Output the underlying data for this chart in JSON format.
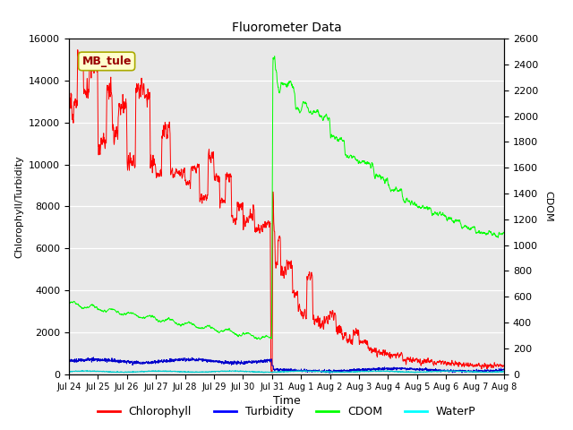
{
  "title": "Fluorometer Data",
  "xlabel": "Time",
  "ylabel_left": "Chlorophyll/Turbidity",
  "ylabel_right": "CDOM",
  "ylim_left": [
    0,
    16000
  ],
  "ylim_right": [
    0,
    2600
  ],
  "yticks_left": [
    0,
    2000,
    4000,
    6000,
    8000,
    10000,
    12000,
    14000,
    16000
  ],
  "yticks_right": [
    0,
    200,
    400,
    600,
    800,
    1000,
    1200,
    1400,
    1600,
    1800,
    2000,
    2200,
    2400,
    2600
  ],
  "xtick_labels": [
    "Jul 24",
    "Jul 25",
    "Jul 26",
    "Jul 27",
    "Jul 28",
    "Jul 29",
    "Jul 30",
    "Jul 31",
    "Aug 1",
    "Aug 2",
    "Aug 3",
    "Aug 4",
    "Aug 5",
    "Aug 6",
    "Aug 7",
    "Aug 8"
  ],
  "fig_facecolor": "#ffffff",
  "plot_bg_color": "#e8e8e8",
  "annotation_box": {
    "text": "MB_tule",
    "facecolor": "#ffffcc",
    "edgecolor": "#aaaa00",
    "textcolor": "#990000",
    "fontsize": 9,
    "fontweight": "bold"
  },
  "legend": {
    "entries": [
      "Chlorophyll",
      "Turbidity",
      "CDOM",
      "WaterP"
    ],
    "colors": [
      "red",
      "blue",
      "lime",
      "cyan"
    ],
    "fontsize": 9
  },
  "colors": {
    "chlorophyll": "#ff0000",
    "turbidity": "#0000cc",
    "cdom": "#00ff00",
    "waterp": "#00cccc"
  },
  "linewidth": 0.7
}
